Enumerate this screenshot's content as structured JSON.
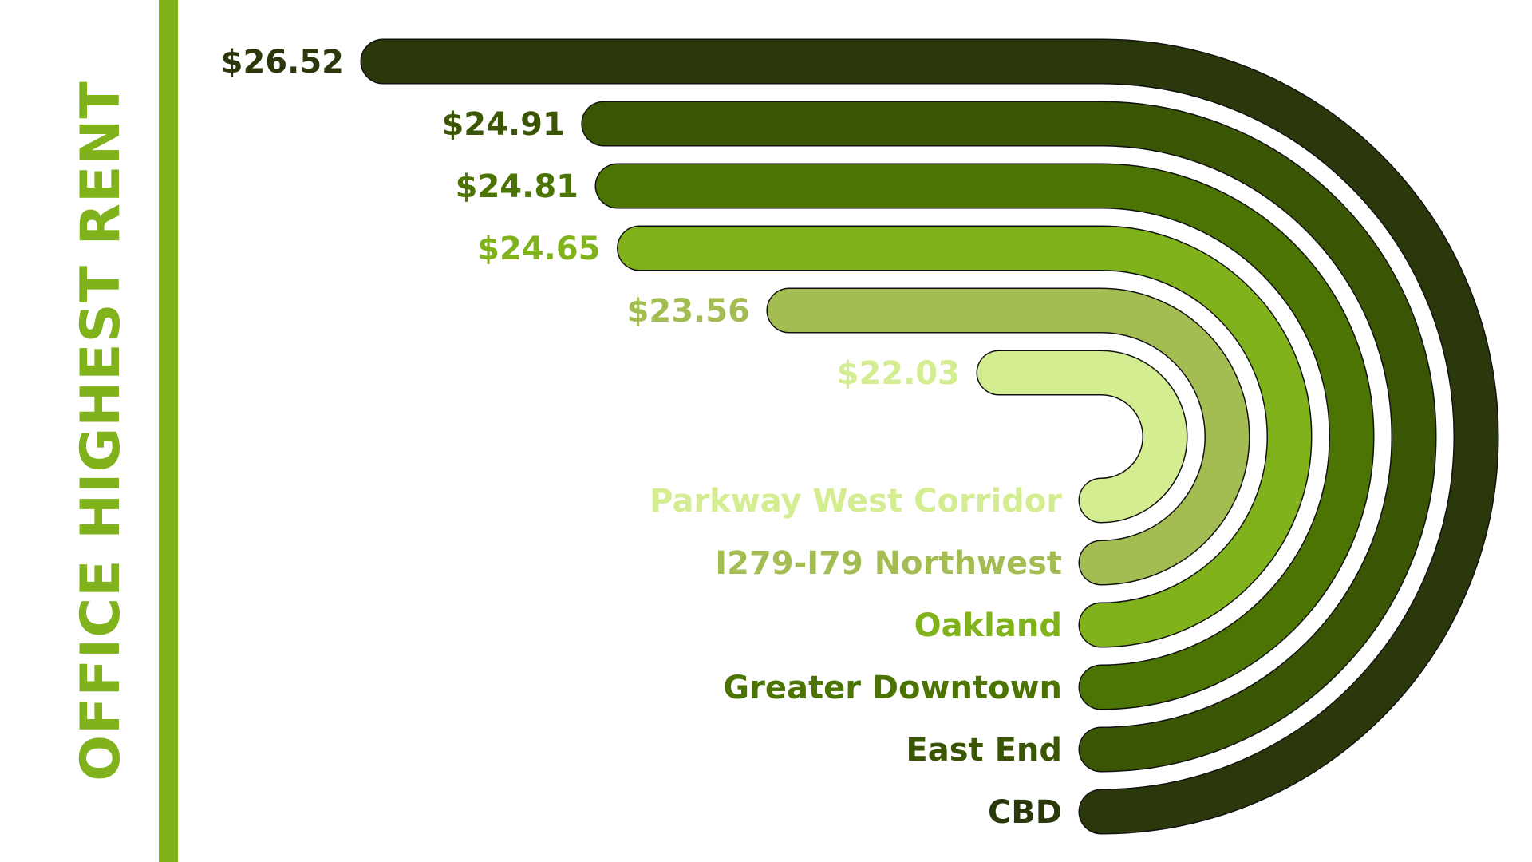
{
  "chart_data": {
    "type": "bar",
    "title": "OFFICE HIGHEST RENT",
    "categories": [
      "CBD",
      "East End",
      "Greater Downtown",
      "Oakland",
      "I279-I79 Northwest",
      "Parkway West Corridor"
    ],
    "values": [
      26.52,
      24.91,
      24.81,
      24.65,
      23.56,
      22.03
    ],
    "value_labels": [
      "$26.52",
      "$24.91",
      "$24.81",
      "$24.65",
      "$23.56",
      "$22.03"
    ],
    "colors": [
      "#2b380c",
      "#3a5604",
      "#4b7402",
      "#80b21b",
      "#a3bd53",
      "#d3ed90"
    ],
    "accent_color": "#80b21b"
  }
}
